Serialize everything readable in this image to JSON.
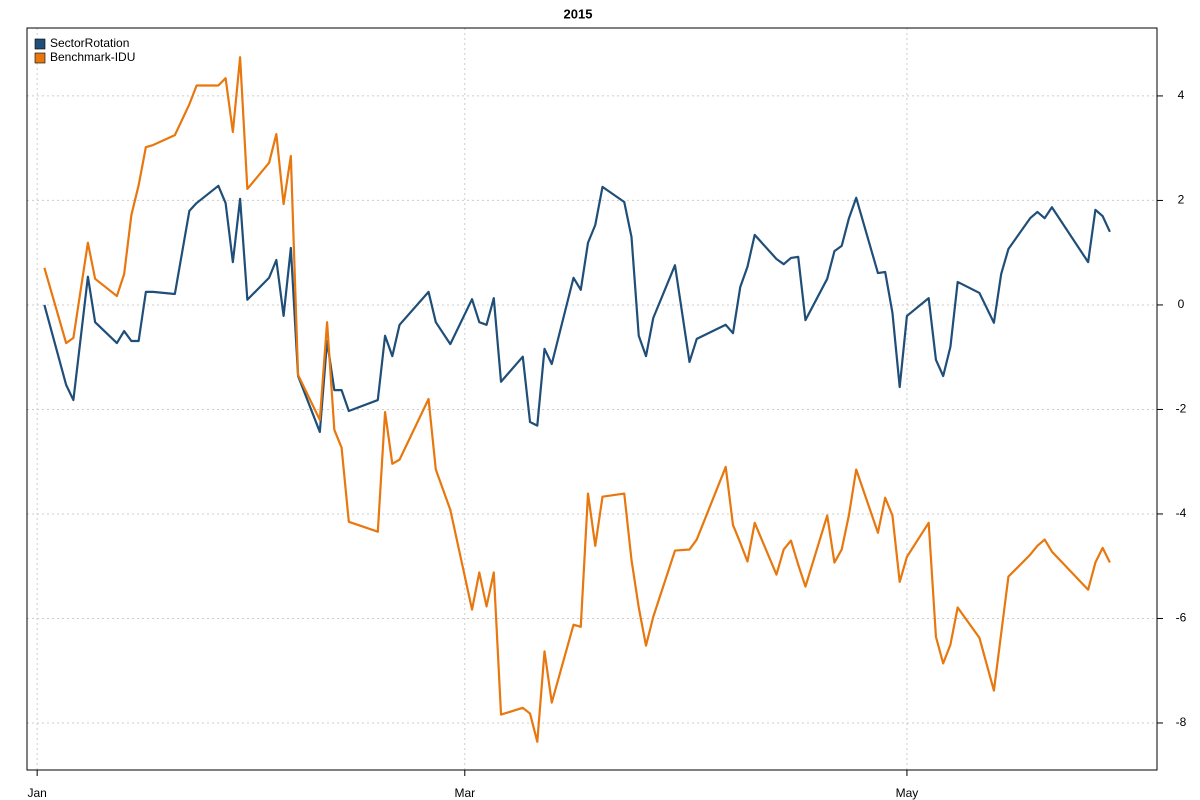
{
  "chart_data": {
    "type": "line",
    "title": "2015",
    "x": [
      1,
      4,
      5,
      7,
      8,
      11,
      12,
      13,
      14,
      15,
      16,
      19,
      21,
      22,
      25,
      26,
      27,
      28,
      29,
      32,
      33,
      34,
      35,
      36,
      39,
      40,
      41,
      42,
      43,
      47,
      48,
      49,
      50,
      54,
      55,
      57,
      60,
      61,
      62,
      63,
      64,
      67,
      68,
      69,
      70,
      71,
      74,
      75,
      76,
      77,
      78,
      81,
      82,
      83,
      84,
      85,
      88,
      90,
      91,
      95,
      96,
      97,
      98,
      99,
      102,
      103,
      104,
      105,
      106,
      109,
      110,
      111,
      112,
      113,
      116,
      117,
      118,
      119,
      120,
      123,
      124,
      125,
      126,
      127,
      130,
      132,
      133,
      134,
      137,
      138,
      139,
      140,
      145,
      146,
      147,
      148
    ],
    "series": [
      {
        "name": "SectorRotation",
        "color": "#1f4e79",
        "values": [
          0,
          -1.53,
          -1.82,
          0.54,
          -0.33,
          -0.73,
          -0.5,
          -0.69,
          -0.69,
          0.25,
          0.25,
          0.21,
          1.8,
          1.95,
          2.28,
          1.95,
          0.82,
          2.03,
          0.1,
          0.52,
          0.86,
          -0.21,
          1.09,
          -1.36,
          -2.43,
          -0.69,
          -1.63,
          -1.63,
          -2.03,
          -1.82,
          -0.59,
          -0.98,
          -0.38,
          0.25,
          -0.33,
          -0.75,
          0.11,
          -0.33,
          -0.38,
          0.13,
          -1.47,
          -0.99,
          -2.24,
          -2.31,
          -0.84,
          -1.13,
          0.52,
          0.29,
          1.19,
          1.53,
          2.26,
          1.97,
          1.3,
          -0.59,
          -0.98,
          -0.25,
          0.76,
          -1.09,
          -0.65,
          -0.38,
          -0.54,
          0.34,
          0.73,
          1.34,
          0.88,
          0.78,
          0.9,
          0.92,
          -0.29,
          0.5,
          1.03,
          1.13,
          1.66,
          2.05,
          0.61,
          0.63,
          -0.15,
          -1.57,
          -0.21,
          0.13,
          -1.05,
          -1.36,
          -0.8,
          0.44,
          0.23,
          -0.34,
          0.59,
          1.07,
          1.66,
          1.78,
          1.66,
          1.87,
          0.82,
          1.82,
          1.7,
          1.4
        ]
      },
      {
        "name": "Benchmark-IDU",
        "color": "#e8770e",
        "values": [
          0.71,
          -0.73,
          -0.63,
          1.19,
          0.5,
          0.17,
          0.59,
          1.72,
          2.29,
          3.02,
          3.06,
          3.25,
          3.84,
          4.2,
          4.2,
          4.34,
          3.31,
          4.74,
          2.22,
          2.72,
          3.27,
          1.93,
          2.85,
          -1.34,
          -2.2,
          -0.33,
          -2.39,
          -2.73,
          -4.15,
          -4.34,
          -2.05,
          -3.04,
          -2.96,
          -1.8,
          -3.15,
          -3.92,
          -5.83,
          -5.12,
          -5.77,
          -5.12,
          -7.84,
          -7.71,
          -7.82,
          -8.36,
          -6.63,
          -7.61,
          -6.12,
          -6.16,
          -3.61,
          -4.61,
          -3.67,
          -3.61,
          -4.88,
          -5.79,
          -6.52,
          -5.97,
          -4.7,
          -4.68,
          -4.49,
          -3.1,
          -4.21,
          -4.55,
          -4.91,
          -4.17,
          -5.16,
          -4.68,
          -4.51,
          -4.97,
          -5.39,
          -4.03,
          -4.93,
          -4.68,
          -4.02,
          -3.15,
          -4.36,
          -3.69,
          -4.03,
          -5.3,
          -4.82,
          -4.17,
          -6.35,
          -6.86,
          -6.5,
          -5.79,
          -6.37,
          -7.38,
          -6.29,
          -5.2,
          -4.78,
          -4.61,
          -4.49,
          -4.72,
          -5.45,
          -4.93,
          -4.65,
          -4.93
        ]
      }
    ],
    "xlim": [
      -1.4,
      154.5
    ],
    "xticks": [
      {
        "value": 0,
        "label": "Jan"
      },
      {
        "value": 59,
        "label": "Mar"
      },
      {
        "value": 120,
        "label": "May"
      }
    ],
    "ylim": [
      -8.9,
      5.3
    ],
    "yticks": [
      -8,
      -6,
      -4,
      -2,
      0,
      2,
      4
    ],
    "grid": true,
    "legend": "upper left"
  }
}
